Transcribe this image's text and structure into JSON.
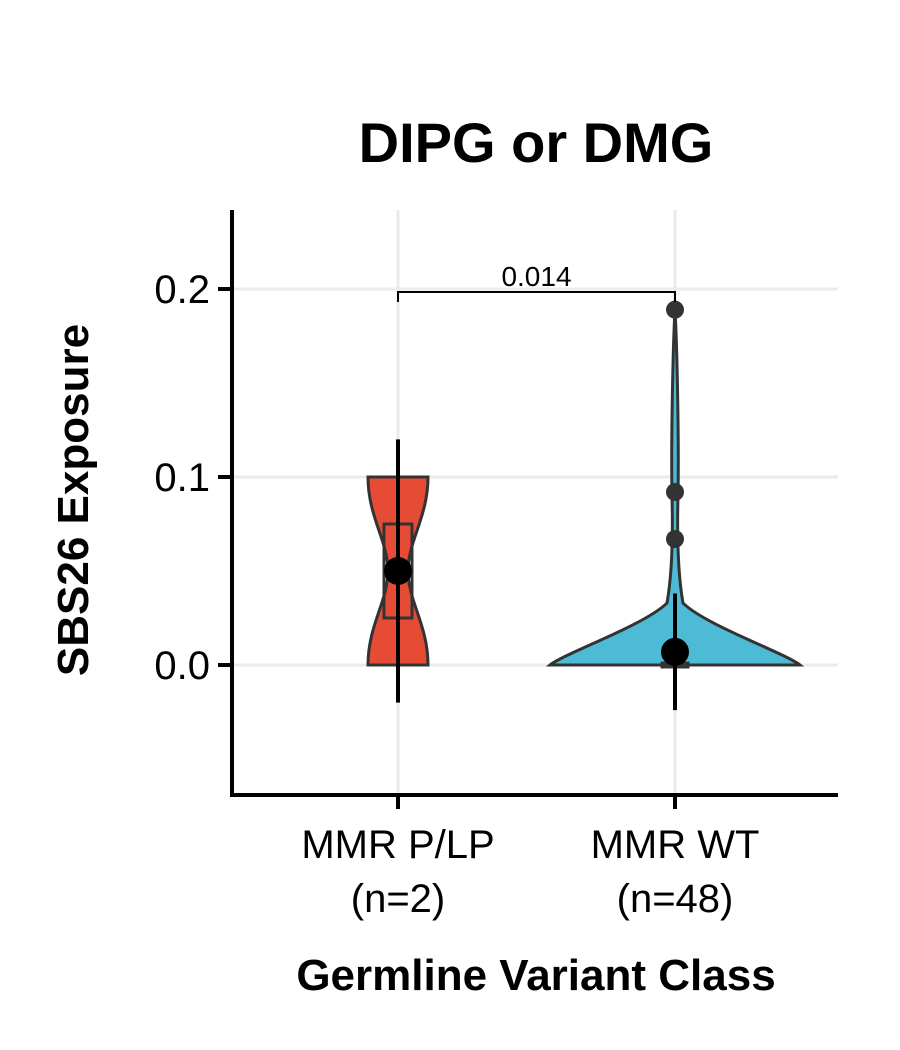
{
  "chart_data": {
    "type": "violin",
    "title": "DIPG or DMG",
    "xlabel": "Germline Variant Class",
    "ylabel": "SBS26 Exposure",
    "ylim": [
      -0.07,
      0.243
    ],
    "y_ticks": [
      0.0,
      0.1,
      0.2
    ],
    "y_tick_labels": [
      "0.0",
      "0.1",
      "0.2"
    ],
    "grid": true,
    "categories": [
      {
        "label": "MMR P/LP",
        "n_label": "(n=2)"
      },
      {
        "label": "MMR WT",
        "n_label": "(n=48)"
      }
    ],
    "groups": [
      {
        "category": "MMR P/LP",
        "color": "#E64B35",
        "violin_min": 0.0,
        "violin_max": 0.1,
        "box": {
          "q1": 0.025,
          "median": 0.05,
          "q3": 0.075
        },
        "summary_point": 0.05,
        "error_bar": [
          -0.02,
          0.12
        ],
        "outliers": []
      },
      {
        "category": "MMR WT",
        "color": "#4DBBD5",
        "violin_min": 0.0,
        "violin_max": 0.189,
        "box": {
          "q1": 0.0,
          "median": 0.0,
          "q3": 0.0
        },
        "summary_point": 0.007,
        "error_bar": [
          -0.024,
          0.038
        ],
        "outliers": [
          0.189,
          0.092,
          0.067
        ]
      }
    ],
    "comparison": {
      "label": "0.014",
      "y": 0.2
    }
  }
}
